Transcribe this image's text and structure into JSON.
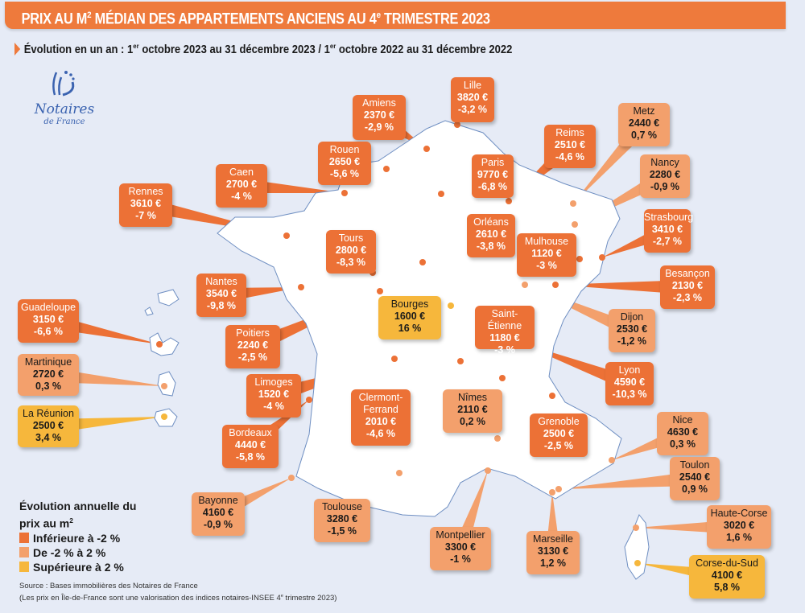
{
  "header": {
    "title": "PRIX AU M² MÉDIAN DES APPARTEMENTS ANCIENS AU 4e TRIMESTRE 2023",
    "title_parts": [
      "PRIX AU M",
      "2",
      " MÉDIAN DES APPARTEMENTS ANCIENS AU 4",
      "e",
      " TRIMESTRE 2023"
    ],
    "subtitle_parts": [
      "Évolution en un an : 1",
      "er",
      " octobre 2023 au 31 décembre 2023 / 1",
      "er",
      " octobre 2022 au 31 décembre 2022"
    ]
  },
  "logo": {
    "name": "Notaires",
    "sub": "de France"
  },
  "colors": {
    "inferieure": "#ec7136",
    "entre": "#f3a06c",
    "superieure": "#f6b73c",
    "background": "#e6ebf6",
    "map": "#ffffff"
  },
  "cities": [
    {
      "name": "Lille",
      "price": "3820 €",
      "change": "-3,2 %",
      "cat": "dark"
    },
    {
      "name": "Amiens",
      "price": "2370 €",
      "change": "-2,9 %",
      "cat": "dark"
    },
    {
      "name": "Metz",
      "price": "2440 €",
      "change": "0,7 %",
      "cat": "light"
    },
    {
      "name": "Reims",
      "price": "2510 €",
      "change": "-4,6 %",
      "cat": "dark"
    },
    {
      "name": "Nancy",
      "price": "2280 €",
      "change": "-0,9 %",
      "cat": "light"
    },
    {
      "name": "Rouen",
      "price": "2650 €",
      "change": "-5,6 %",
      "cat": "dark"
    },
    {
      "name": "Paris",
      "price": "9770 €",
      "change": "-6,8 %",
      "cat": "dark"
    },
    {
      "name": "Caen",
      "price": "2700 €",
      "change": "-4 %",
      "cat": "dark"
    },
    {
      "name": "Rennes",
      "price": "3610 €",
      "change": "-7 %",
      "cat": "dark"
    },
    {
      "name": "Strasbourg",
      "price": "3410 €",
      "change": "-2,7 %",
      "cat": "dark"
    },
    {
      "name": "Orléans",
      "price": "2610 €",
      "change": "-3,8 %",
      "cat": "dark"
    },
    {
      "name": "Tours",
      "price": "2800 €",
      "change": "-8,3 %",
      "cat": "dark"
    },
    {
      "name": "Mulhouse",
      "price": "1120 €",
      "change": "-3 %",
      "cat": "dark"
    },
    {
      "name": "Nantes",
      "price": "3540 €",
      "change": "-9,8 %",
      "cat": "dark"
    },
    {
      "name": "Besançon",
      "price": "2130 €",
      "change": "-2,3 %",
      "cat": "dark"
    },
    {
      "name": "Bourges",
      "price": "1600 €",
      "change": "16 %",
      "cat": "yellow"
    },
    {
      "name": "Guadeloupe",
      "price": "3150 €",
      "change": "-6,6 %",
      "cat": "dark"
    },
    {
      "name": "Saint-Étienne",
      "price": "1180 €",
      "change": "-3 %",
      "cat": "dark"
    },
    {
      "name": "Dijon",
      "price": "2530 €",
      "change": "-1,2 %",
      "cat": "light"
    },
    {
      "name": "Poitiers",
      "price": "2240 €",
      "change": "-2,5 %",
      "cat": "dark"
    },
    {
      "name": "Martinique",
      "price": "2720 €",
      "change": "0,3 %",
      "cat": "light"
    },
    {
      "name": "Lyon",
      "price": "4590 €",
      "change": "-10,3 %",
      "cat": "dark"
    },
    {
      "name": "Limoges",
      "price": "1520 €",
      "change": "-4 %",
      "cat": "dark"
    },
    {
      "name": "Clermont-Ferrand",
      "price": "2010 €",
      "change": "-4,6 %",
      "cat": "dark"
    },
    {
      "name": "Nîmes",
      "price": "2110 €",
      "change": "0,2 %",
      "cat": "light"
    },
    {
      "name": "La Réunion",
      "price": "2500 €",
      "change": "3,4 %",
      "cat": "yellow"
    },
    {
      "name": "Bordeaux",
      "price": "4440 €",
      "change": "-5,8 %",
      "cat": "dark"
    },
    {
      "name": "Grenoble",
      "price": "2500 €",
      "change": "-2,5 %",
      "cat": "dark"
    },
    {
      "name": "Nice",
      "price": "4630 €",
      "change": "0,3 %",
      "cat": "light"
    },
    {
      "name": "Toulon",
      "price": "2540 €",
      "change": "0,9 %",
      "cat": "light"
    },
    {
      "name": "Bayonne",
      "price": "4160 €",
      "change": "-0,9 %",
      "cat": "light"
    },
    {
      "name": "Toulouse",
      "price": "3280 €",
      "change": "-1,5 %",
      "cat": "light"
    },
    {
      "name": "Haute-Corse",
      "price": "3020 €",
      "change": "1,6 %",
      "cat": "light"
    },
    {
      "name": "Montpellier",
      "price": "3300 €",
      "change": "-1 %",
      "cat": "light"
    },
    {
      "name": "Marseille",
      "price": "3130 €",
      "change": "1,2 %",
      "cat": "light"
    },
    {
      "name": "Corse-du-Sud",
      "price": "4100 €",
      "change": "5,8 %",
      "cat": "yellow"
    }
  ],
  "legend": {
    "title_parts": [
      "Évolution annuelle du prix au m",
      "2"
    ],
    "items": [
      {
        "label": "Inférieure à -2 %",
        "cat": "dark"
      },
      {
        "label": "De -2 % à 2 %",
        "cat": "light"
      },
      {
        "label": "Supérieure à 2 %",
        "cat": "yellow"
      }
    ]
  },
  "source": {
    "line1": "Source : Bases immobilières des Notaires de France",
    "line2_parts": [
      "(Les prix en Île-de-France sont une valorisation des indices notaires-INSEE 4",
      "e",
      " trimestre 2023)"
    ]
  }
}
